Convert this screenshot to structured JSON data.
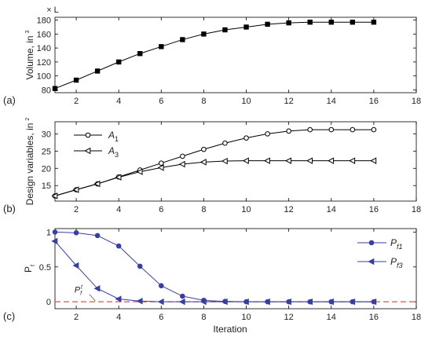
{
  "chart_data": [
    {
      "type": "line",
      "panel_label": "(a)",
      "ylabel_main": "Volume, in",
      "ylabel_sup": "3",
      "y_multiplier": "× L",
      "xlim": [
        1,
        18
      ],
      "ylim": [
        76,
        184
      ],
      "yticks": [
        80,
        100,
        120,
        140,
        160,
        180
      ],
      "xticks": [
        2,
        4,
        6,
        8,
        10,
        12,
        14,
        16,
        18
      ],
      "grid": false,
      "series": [
        {
          "marker": "square",
          "color": "#000000",
          "x": [
            1,
            2,
            3,
            4,
            5,
            6,
            7,
            8,
            9,
            10,
            11,
            12,
            13,
            14,
            15,
            16
          ],
          "values": [
            82,
            94,
            107,
            120,
            132,
            142,
            152,
            160,
            166,
            170,
            174,
            176,
            177,
            177,
            177,
            177
          ]
        }
      ]
    },
    {
      "type": "line",
      "panel_label": "(b)",
      "ylabel_main": "Design variables, in",
      "ylabel_sup": "2",
      "xlim": [
        1,
        18
      ],
      "ylim": [
        10.5,
        33.5
      ],
      "yticks": [
        15,
        20,
        25,
        30
      ],
      "xticks": [
        2,
        4,
        6,
        8,
        10,
        12,
        14,
        16,
        18
      ],
      "grid": false,
      "legend": "top-left",
      "series": [
        {
          "name": "A",
          "name_sub": "1",
          "marker": "circle",
          "color": "#000000",
          "x": [
            1,
            2,
            3,
            4,
            5,
            6,
            7,
            8,
            9,
            10,
            11,
            12,
            13,
            14,
            15,
            16
          ],
          "values": [
            12,
            13.8,
            15.5,
            17.5,
            19.5,
            21.5,
            23.5,
            25.5,
            27.3,
            28.8,
            30,
            30.8,
            31.2,
            31.2,
            31.2,
            31.2
          ]
        },
        {
          "name": "A",
          "name_sub": "3",
          "marker": "triangle-left",
          "color": "#000000",
          "x": [
            1,
            2,
            3,
            4,
            5,
            6,
            7,
            8,
            9,
            10,
            11,
            12,
            13,
            14,
            15,
            16
          ],
          "values": [
            12,
            13.8,
            15.5,
            17.4,
            19,
            20.2,
            21.2,
            21.8,
            22.1,
            22.2,
            22.2,
            22.2,
            22.2,
            22.2,
            22.2,
            22.2
          ]
        }
      ]
    },
    {
      "type": "line",
      "panel_label": "(c)",
      "ylabel_main": "P",
      "ylabel_sub": "f",
      "xlabel": "Iteration",
      "xlim": [
        1,
        18
      ],
      "ylim": [
        -0.1,
        1.05
      ],
      "yticks": [
        0,
        0.5,
        1
      ],
      "ytick_labels": [
        "0",
        "0.5",
        "1"
      ],
      "xticks": [
        2,
        4,
        6,
        8,
        10,
        12,
        14,
        16,
        18
      ],
      "grid": false,
      "legend": "top-right",
      "threshold": {
        "y": 0,
        "color": "#d9534f",
        "style": "dashed"
      },
      "annotation": {
        "text": "P",
        "sub": "f",
        "sup": "t",
        "x": 2.1,
        "y": 0.13,
        "arrow_to_x": 2.9,
        "arrow_to_y": 0.0
      },
      "series": [
        {
          "name": "P",
          "name_sub": "f1",
          "marker": "circle-filled",
          "color": "#3a3f9e",
          "x": [
            1,
            2,
            3,
            4,
            5,
            6,
            7,
            8,
            9,
            10,
            11,
            12,
            13,
            14,
            15,
            16
          ],
          "values": [
            1.0,
            0.99,
            0.95,
            0.8,
            0.51,
            0.23,
            0.08,
            0.02,
            0.005,
            0.0,
            0.0,
            0.0,
            0.0,
            0.0,
            0.0,
            0.0
          ]
        },
        {
          "name": "P",
          "name_sub": "f3",
          "marker": "triangle-left-filled",
          "color": "#3a3f9e",
          "x": [
            1,
            2,
            3,
            4,
            5,
            6,
            7,
            8,
            9,
            10,
            11,
            12,
            13,
            14,
            15,
            16
          ],
          "values": [
            0.87,
            0.52,
            0.19,
            0.04,
            0.01,
            0.0,
            0.0,
            0.0,
            0.0,
            0.0,
            0.0,
            0.0,
            0.0,
            0.0,
            0.0,
            0.0
          ]
        }
      ]
    }
  ]
}
